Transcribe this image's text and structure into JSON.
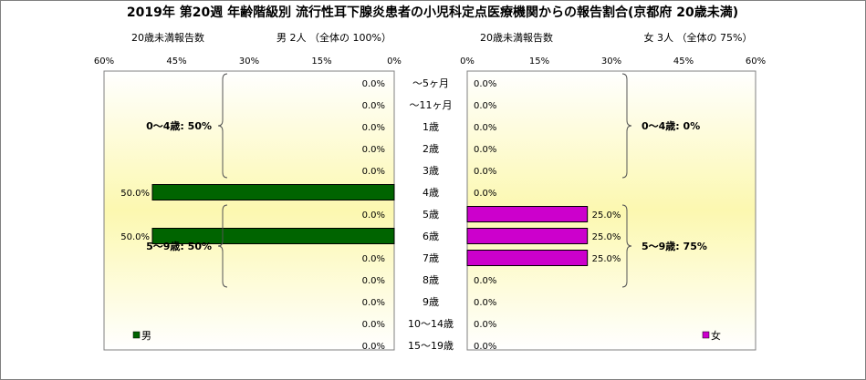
{
  "chart_data": {
    "type": "bar",
    "title": "2019年 第20週 年齢階級別 流行性耳下腺炎患者の小児科定点医療機関からの報告割合(京都府 20歳未満)",
    "categories": [
      "～5ヶ月",
      "～11ヶ月",
      "1歳",
      "2歳",
      "3歳",
      "4歳",
      "5歳",
      "6歳",
      "7歳",
      "8歳",
      "9歳",
      "10～14歳",
      "15～19歳"
    ],
    "axis_ticks": [
      "60%",
      "45%",
      "30%",
      "15%",
      "0%"
    ],
    "axis_ticks_right": [
      "0%",
      "15%",
      "30%",
      "45%",
      "60%"
    ],
    "xlim": [
      0,
      60
    ],
    "grid": false,
    "panels": [
      {
        "side": "left",
        "header_left": "20歳未満報告数",
        "header_right": "男  2人 （全体の  100%）",
        "legend": "男",
        "color": "#006400",
        "values": [
          0,
          0,
          0,
          0,
          0,
          50,
          0,
          50,
          0,
          0,
          0,
          0,
          0
        ],
        "labels": [
          "0.0%",
          "0.0%",
          "0.0%",
          "0.0%",
          "0.0%",
          "50.0%",
          "0.0%",
          "50.0%",
          "0.0%",
          "0.0%",
          "0.0%",
          "0.0%",
          "0.0%"
        ],
        "groups": [
          {
            "text": "0～4歳: 50%",
            "from": 0,
            "to": 5
          },
          {
            "text": "5～9歳: 50%",
            "from": 6,
            "to": 10
          }
        ]
      },
      {
        "side": "right",
        "header_left": "20歳未満報告数",
        "header_right": "女  3人 （全体の  75%）",
        "legend": "女",
        "color": "#cc00cc",
        "values": [
          0,
          0,
          0,
          0,
          0,
          0,
          25,
          25,
          25,
          0,
          0,
          0,
          0
        ],
        "labels": [
          "0.0%",
          "0.0%",
          "0.0%",
          "0.0%",
          "0.0%",
          "0.0%",
          "25.0%",
          "25.0%",
          "25.0%",
          "0.0%",
          "0.0%",
          "0.0%",
          "0.0%"
        ],
        "groups": [
          {
            "text": "0～4歳: 0%",
            "from": 0,
            "to": 5
          },
          {
            "text": "5～9歳: 75%",
            "from": 6,
            "to": 10
          }
        ]
      }
    ]
  }
}
